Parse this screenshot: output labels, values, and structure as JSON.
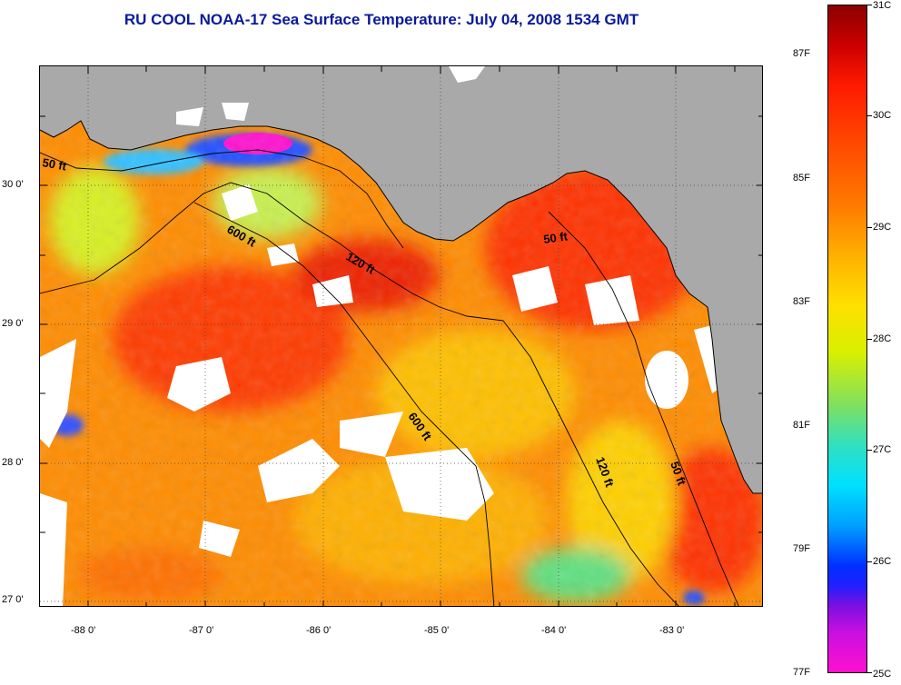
{
  "title": "RU COOL  NOAA-17  Sea Surface Temperature:  July 04, 2008 1534 GMT",
  "map": {
    "lon_labels": [
      "-88 0'",
      "-87 0'",
      "-86 0'",
      "-85 0'",
      "-84 0'",
      "-83 0'"
    ],
    "lat_labels": [
      "30 0'",
      "29 0'",
      "28 0'",
      "27 0'"
    ],
    "contour_labels": [
      "50 ft",
      "600 ft",
      "120 ft",
      "50 ft",
      "600 ft",
      "120 ft",
      "50 ft"
    ],
    "colors": {
      "land": "#a9a9a9",
      "cloud": "#ffffff",
      "contour": "#000000"
    }
  },
  "colorbar": {
    "celsius_labels": [
      "31C",
      "30C",
      "29C",
      "28C",
      "27C",
      "26C",
      "25C"
    ],
    "fahrenheit_labels": [
      "87F",
      "85F",
      "83F",
      "81F",
      "79F",
      "77F"
    ],
    "range_celsius": [
      25,
      31
    ],
    "range_fahrenheit": [
      77,
      87.8
    ]
  }
}
